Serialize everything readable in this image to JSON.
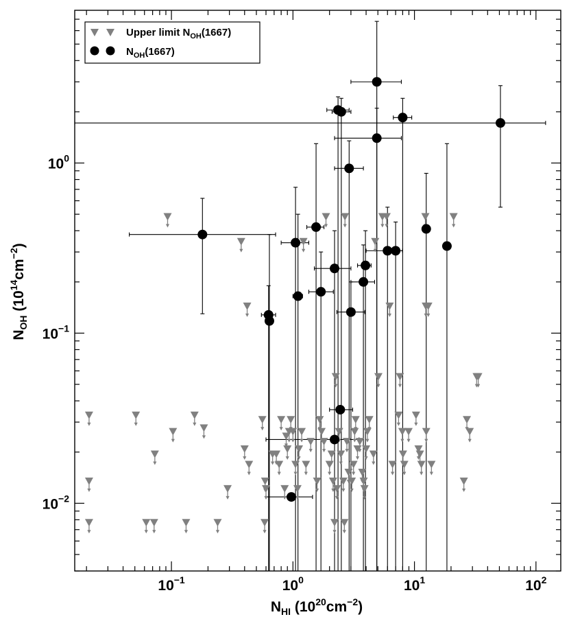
{
  "chart_data": {
    "type": "scatter",
    "xlabel": {
      "main": "N",
      "sub": "HI",
      "rest": " (10",
      "sup": "20",
      "tail": "cm",
      "sup2": "−2",
      "close": ")"
    },
    "ylabel": {
      "main": "N",
      "sub": "OH",
      "rest": " (10",
      "sup": "14",
      "tail": "cm",
      "sup2": "−2",
      "close": ")"
    },
    "x_scale": "log",
    "y_scale": "log",
    "xlim": [
      0.016,
      160
    ],
    "ylim": [
      0.004,
      7.9
    ],
    "x_ticks": [
      {
        "value": 0.1,
        "base": "10",
        "exp": "−1"
      },
      {
        "value": 1,
        "base": "10",
        "exp": "0"
      },
      {
        "value": 10,
        "base": "10",
        "exp": "1"
      },
      {
        "value": 100,
        "base": "10",
        "exp": "2"
      }
    ],
    "y_ticks": [
      {
        "value": 0.01,
        "base": "10",
        "exp": "−2"
      },
      {
        "value": 0.1,
        "base": "10",
        "exp": "−1"
      },
      {
        "value": 1,
        "base": "10",
        "exp": "0"
      }
    ],
    "legend": {
      "position": "top-left",
      "entries": [
        {
          "series": "upper_limits",
          "label_main": "Upper limit N",
          "label_sub": "OH",
          "label_tail": "(1667)"
        },
        {
          "series": "detections",
          "label_main": "N",
          "label_sub": "OH",
          "label_tail": "(1667)"
        }
      ]
    },
    "colors": {
      "detections": "#000000",
      "upper_limits": "#808080",
      "error_bars": "#000000"
    },
    "series": [
      {
        "key": "detections",
        "marker": "circle",
        "points": [
          {
            "x": 0.18,
            "y": 0.38,
            "x_lo": 0.045,
            "x_hi": 0.72,
            "y_lo": 0.13,
            "y_hi": 0.62
          },
          {
            "x": 0.63,
            "y": 0.128,
            "x_lo": 0.55,
            "x_hi": 0.72,
            "y_lo": 0.004,
            "y_hi": 0.19
          },
          {
            "x": 0.64,
            "y": 0.118,
            "x_lo": null,
            "x_hi": null,
            "y_lo": 0.004,
            "y_hi": 0.38
          },
          {
            "x": 1.05,
            "y": 0.34,
            "x_lo": 0.8,
            "x_hi": 1.35,
            "y_lo": 0.004,
            "y_hi": 0.72
          },
          {
            "x": 1.1,
            "y": 0.165,
            "x_lo": 1.0,
            "x_hi": 1.2,
            "y_lo": 0.004,
            "y_hi": 0.5
          },
          {
            "x": 1.55,
            "y": 0.42,
            "x_lo": 1.3,
            "x_hi": 1.8,
            "y_lo": 0.004,
            "y_hi": 1.3
          },
          {
            "x": 1.7,
            "y": 0.175,
            "x_lo": 1.35,
            "x_hi": 2.15,
            "y_lo": 0.004,
            "y_hi": 0.3
          },
          {
            "x": 2.2,
            "y": 0.24,
            "x_lo": 1.5,
            "x_hi": 3.0,
            "y_lo": 0.004,
            "y_hi": 0.4
          },
          {
            "x": 2.35,
            "y": 2.05,
            "x_lo": 1.9,
            "x_hi": 2.9,
            "y_lo": 0.004,
            "y_hi": 2.45
          },
          {
            "x": 2.5,
            "y": 2.0,
            "x_lo": 2.1,
            "x_hi": 3.0,
            "y_lo": 0.004,
            "y_hi": 2.4
          },
          {
            "x": 2.9,
            "y": 0.93,
            "x_lo": 2.2,
            "x_hi": 3.8,
            "y_lo": 0.004,
            "y_hi": 1.35
          },
          {
            "x": 3.0,
            "y": 0.133,
            "x_lo": 2.3,
            "x_hi": 3.9,
            "y_lo": 0.004,
            "y_hi": 0.2
          },
          {
            "x": 3.8,
            "y": 0.2,
            "x_lo": 3.0,
            "x_hi": 4.7,
            "y_lo": 0.004,
            "y_hi": 0.33
          },
          {
            "x": 3.95,
            "y": 0.25,
            "x_lo": 3.4,
            "x_hi": 4.4,
            "y_lo": 0.004,
            "y_hi": 0.4
          },
          {
            "x": 4.9,
            "y": 3.0,
            "x_lo": 3.0,
            "x_hi": 7.8,
            "y_lo": 0.004,
            "y_hi": 6.8
          },
          {
            "x": 4.9,
            "y": 1.4,
            "x_lo": 2.2,
            "x_hi": 7.8,
            "y_lo": 0.004,
            "y_hi": 2.1
          },
          {
            "x": 6.0,
            "y": 0.305,
            "x_lo": 4.0,
            "x_hi": 8.0,
            "y_lo": 0.004,
            "y_hi": 0.55
          },
          {
            "x": 7.0,
            "y": 0.305,
            "x_lo": 6.1,
            "x_hi": 8.0,
            "y_lo": 0.004,
            "y_hi": 0.45
          },
          {
            "x": 8.0,
            "y": 1.85,
            "x_lo": 6.7,
            "x_hi": 9.5,
            "y_lo": 0.004,
            "y_hi": 2.4
          },
          {
            "x": 12.5,
            "y": 0.41,
            "x_lo": null,
            "x_hi": null,
            "y_lo": 0.004,
            "y_hi": 0.87
          },
          {
            "x": 18.5,
            "y": 0.325,
            "x_lo": null,
            "x_hi": null,
            "y_lo": 0.004,
            "y_hi": 1.3
          },
          {
            "x": 51,
            "y": 1.72,
            "x_lo": 0.016,
            "x_hi": 120,
            "y_lo": 0.55,
            "y_hi": 2.85
          },
          {
            "x": 2.2,
            "y": 0.0237,
            "x_lo": 0.6,
            "x_hi": 3.5,
            "y_lo": null,
            "y_hi": null
          },
          {
            "x": 2.45,
            "y": 0.0355,
            "x_lo": 2.0,
            "x_hi": 3.1,
            "y_lo": null,
            "y_hi": null
          },
          {
            "x": 0.97,
            "y": 0.0109,
            "x_lo": 0.6,
            "x_hi": 1.45,
            "y_lo": null,
            "y_hi": null
          }
        ]
      },
      {
        "key": "upper_limits",
        "marker": "triangle-down-arrow",
        "points": [
          {
            "x": 0.021,
            "y": 0.0327
          },
          {
            "x": 0.021,
            "y": 0.0134
          },
          {
            "x": 0.021,
            "y": 0.00765
          },
          {
            "x": 0.051,
            "y": 0.0327
          },
          {
            "x": 0.062,
            "y": 0.00765
          },
          {
            "x": 0.072,
            "y": 0.00765
          },
          {
            "x": 0.073,
            "y": 0.0193
          },
          {
            "x": 0.093,
            "y": 0.48
          },
          {
            "x": 0.103,
            "y": 0.0262
          },
          {
            "x": 0.132,
            "y": 0.00765
          },
          {
            "x": 0.155,
            "y": 0.0327
          },
          {
            "x": 0.185,
            "y": 0.0275
          },
          {
            "x": 0.24,
            "y": 0.00765
          },
          {
            "x": 0.29,
            "y": 0.0121
          },
          {
            "x": 0.375,
            "y": 0.343
          },
          {
            "x": 0.4,
            "y": 0.0207
          },
          {
            "x": 0.42,
            "y": 0.143
          },
          {
            "x": 0.435,
            "y": 0.0168
          },
          {
            "x": 0.56,
            "y": 0.0308
          },
          {
            "x": 0.585,
            "y": 0.00765
          },
          {
            "x": 0.59,
            "y": 0.0134
          },
          {
            "x": 0.6,
            "y": 0.0121
          },
          {
            "x": 0.68,
            "y": 0.0193
          },
          {
            "x": 0.73,
            "y": 0.0193
          },
          {
            "x": 0.77,
            "y": 0.0168
          },
          {
            "x": 0.8,
            "y": 0.0308
          },
          {
            "x": 0.855,
            "y": 0.0121
          },
          {
            "x": 0.88,
            "y": 0.0246
          },
          {
            "x": 0.9,
            "y": 0.0207
          },
          {
            "x": 0.93,
            "y": 0.0262
          },
          {
            "x": 0.96,
            "y": 0.0308
          },
          {
            "x": 1.0,
            "y": 0.0262
          },
          {
            "x": 1.05,
            "y": 0.0168
          },
          {
            "x": 1.09,
            "y": 0.0121
          },
          {
            "x": 1.12,
            "y": 0.0207
          },
          {
            "x": 1.18,
            "y": 0.0262
          },
          {
            "x": 1.22,
            "y": 0.343
          },
          {
            "x": 1.28,
            "y": 0.0168
          },
          {
            "x": 1.4,
            "y": 0.0229
          },
          {
            "x": 1.58,
            "y": 0.0134
          },
          {
            "x": 1.66,
            "y": 0.0308
          },
          {
            "x": 1.72,
            "y": 0.0262
          },
          {
            "x": 1.8,
            "y": 0.0229
          },
          {
            "x": 1.87,
            "y": 0.48
          },
          {
            "x": 2.0,
            "y": 0.0168
          },
          {
            "x": 2.08,
            "y": 0.0193
          },
          {
            "x": 2.14,
            "y": 0.0134
          },
          {
            "x": 2.2,
            "y": 0.00765
          },
          {
            "x": 2.25,
            "y": 0.0551
          },
          {
            "x": 2.3,
            "y": 0.0121
          },
          {
            "x": 2.4,
            "y": 0.0262
          },
          {
            "x": 2.48,
            "y": 0.0193
          },
          {
            "x": 2.6,
            "y": 0.0134
          },
          {
            "x": 2.65,
            "y": 0.00765
          },
          {
            "x": 2.68,
            "y": 0.48
          },
          {
            "x": 2.78,
            "y": 0.0229
          },
          {
            "x": 2.87,
            "y": 0.0151
          },
          {
            "x": 3.05,
            "y": 0.0134
          },
          {
            "x": 3.15,
            "y": 0.0168
          },
          {
            "x": 3.22,
            "y": 0.0262
          },
          {
            "x": 3.28,
            "y": 0.0308
          },
          {
            "x": 3.4,
            "y": 0.0207
          },
          {
            "x": 3.55,
            "y": 0.0229
          },
          {
            "x": 3.72,
            "y": 0.0151
          },
          {
            "x": 3.82,
            "y": 0.0134
          },
          {
            "x": 3.88,
            "y": 0.0121
          },
          {
            "x": 4.0,
            "y": 0.0207
          },
          {
            "x": 4.1,
            "y": 0.0262
          },
          {
            "x": 4.25,
            "y": 0.0308
          },
          {
            "x": 4.6,
            "y": 0.0193
          },
          {
            "x": 4.75,
            "y": 0.343
          },
          {
            "x": 5.05,
            "y": 0.0551
          },
          {
            "x": 5.45,
            "y": 0.48
          },
          {
            "x": 5.9,
            "y": 0.48
          },
          {
            "x": 6.25,
            "y": 0.143
          },
          {
            "x": 6.6,
            "y": 0.0168
          },
          {
            "x": 7.4,
            "y": 0.0327
          },
          {
            "x": 7.6,
            "y": 0.0551
          },
          {
            "x": 7.95,
            "y": 0.0262
          },
          {
            "x": 8.05,
            "y": 0.0193
          },
          {
            "x": 8.25,
            "y": 0.0168
          },
          {
            "x": 8.95,
            "y": 0.0262
          },
          {
            "x": 10.3,
            "y": 0.0327
          },
          {
            "x": 10.8,
            "y": 0.0207
          },
          {
            "x": 11.1,
            "y": 0.0193
          },
          {
            "x": 11.4,
            "y": 0.0168
          },
          {
            "x": 12.3,
            "y": 0.48
          },
          {
            "x": 12.4,
            "y": 0.143
          },
          {
            "x": 12.5,
            "y": 0.0262
          },
          {
            "x": 13.0,
            "y": 0.143
          },
          {
            "x": 13.8,
            "y": 0.0168
          },
          {
            "x": 21,
            "y": 0.48
          },
          {
            "x": 25.5,
            "y": 0.0134
          },
          {
            "x": 27,
            "y": 0.0308
          },
          {
            "x": 28.5,
            "y": 0.0262
          },
          {
            "x": 32.5,
            "y": 0.0551
          },
          {
            "x": 33.5,
            "y": 0.0551
          }
        ]
      }
    ]
  }
}
